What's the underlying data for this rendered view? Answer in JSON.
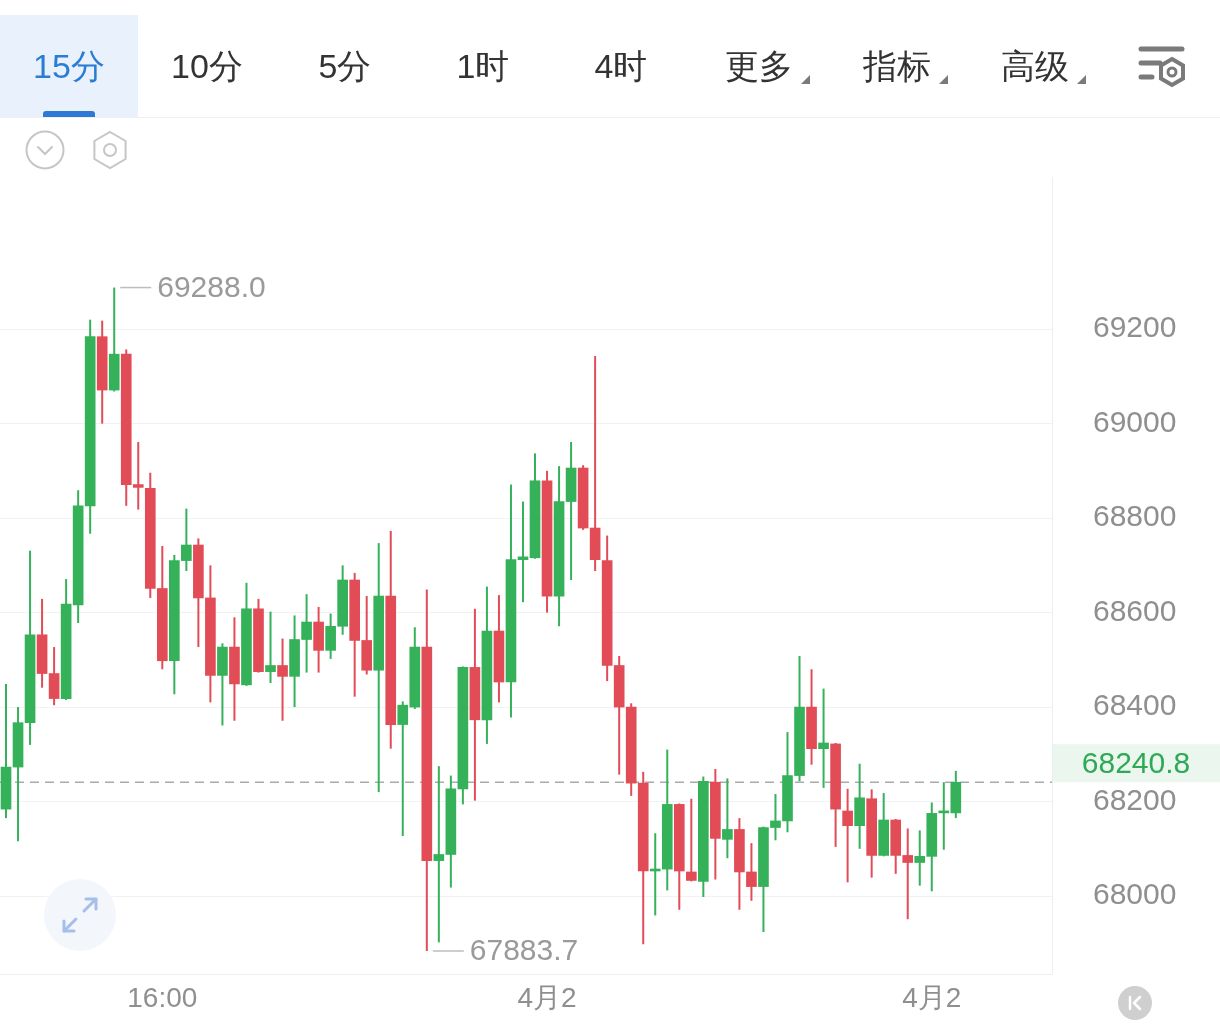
{
  "chart_data": {
    "type": "candlestick",
    "categories": [
      null,
      null,
      null,
      null,
      null,
      null,
      null,
      null,
      null,
      null,
      null,
      null,
      null,
      "16:00",
      null,
      null,
      null,
      null,
      null,
      null,
      null,
      null,
      null,
      null,
      null,
      null,
      null,
      null,
      null,
      null,
      null,
      null,
      null,
      null,
      null,
      null,
      null,
      null,
      null,
      null,
      null,
      null,
      null,
      null,
      null,
      "4月2",
      null,
      null,
      null,
      null,
      null,
      null,
      null,
      null,
      null,
      null,
      null,
      null,
      null,
      null,
      null,
      null,
      null,
      null,
      null,
      null,
      null,
      null,
      null,
      null,
      null,
      null,
      null,
      null,
      null,
      null,
      null,
      "4月2",
      null,
      null
    ],
    "ohlc": [
      [
        68184,
        68449,
        68165,
        68273
      ],
      [
        68273,
        68400,
        68116,
        68367
      ],
      [
        68367,
        68731,
        68320,
        68553
      ],
      [
        68553,
        68629,
        68441,
        68471
      ],
      [
        68471,
        68527,
        68404,
        68418
      ],
      [
        68418,
        68671,
        68415,
        68618
      ],
      [
        68616,
        68859,
        68578,
        68826
      ],
      [
        68826,
        69220,
        68767,
        69184
      ],
      [
        69184,
        69218,
        69000,
        69071
      ],
      [
        69071,
        69288.0,
        69068,
        69147
      ],
      [
        69147,
        69157,
        68826,
        68871
      ],
      [
        68871,
        68961,
        68818,
        68865
      ],
      [
        68863,
        68896,
        68631,
        68651
      ],
      [
        68651,
        68741,
        68480,
        68498
      ],
      [
        68498,
        68722,
        68427,
        68710
      ],
      [
        68710,
        68820,
        68688,
        68743
      ],
      [
        68743,
        68757,
        68527,
        68631
      ],
      [
        68631,
        68700,
        68410,
        68467
      ],
      [
        68467,
        68535,
        68361,
        68527
      ],
      [
        68527,
        68590,
        68371,
        68449
      ],
      [
        68447,
        68663,
        68445,
        68608
      ],
      [
        68608,
        68629,
        68473,
        68475
      ],
      [
        68475,
        68602,
        68451,
        68488
      ],
      [
        68488,
        68545,
        68371,
        68465
      ],
      [
        68465,
        68594,
        68400,
        68543
      ],
      [
        68543,
        68639,
        68473,
        68580
      ],
      [
        68580,
        68612,
        68473,
        68520
      ],
      [
        68520,
        68598,
        68502,
        68571
      ],
      [
        68571,
        68700,
        68553,
        68669
      ],
      [
        68669,
        68684,
        68422,
        68541
      ],
      [
        68541,
        68635,
        68469,
        68478
      ],
      [
        68478,
        68747,
        68220,
        68635
      ],
      [
        68635,
        68773,
        68312,
        68363
      ],
      [
        68363,
        68412,
        68127,
        68404
      ],
      [
        68400,
        68569,
        68396,
        68527
      ],
      [
        68527,
        68649,
        67883.7,
        68075
      ],
      [
        68075,
        68275,
        67902,
        68088
      ],
      [
        68088,
        68255,
        68018,
        68227
      ],
      [
        68227,
        68486,
        68194,
        68484
      ],
      [
        68484,
        68608,
        68202,
        68373
      ],
      [
        68373,
        68655,
        68322,
        68561
      ],
      [
        68561,
        68637,
        68410,
        68453
      ],
      [
        68453,
        68871,
        68378,
        68712
      ],
      [
        68712,
        68835,
        68622,
        68718
      ],
      [
        68716,
        68937,
        68714,
        68879
      ],
      [
        68879,
        68900,
        68600,
        68635
      ],
      [
        68635,
        68910,
        68571,
        68835
      ],
      [
        68835,
        68961,
        68669,
        68906
      ],
      [
        68906,
        68912,
        68775,
        68779
      ],
      [
        68779,
        69143,
        68688,
        68712
      ],
      [
        68710,
        68763,
        68455,
        68488
      ],
      [
        68488,
        68508,
        68257,
        68400
      ],
      [
        68400,
        68408,
        68212,
        68239
      ],
      [
        68239,
        68263,
        67898,
        68053
      ],
      [
        68053,
        68133,
        67959,
        68057
      ],
      [
        68057,
        68310,
        68012,
        68194
      ],
      [
        68194,
        68196,
        67971,
        68053
      ],
      [
        68051,
        68206,
        68031,
        68033
      ],
      [
        68031,
        68253,
        67998,
        68243
      ],
      [
        68241,
        68269,
        68035,
        68122
      ],
      [
        68120,
        68249,
        68080,
        68141
      ],
      [
        68141,
        68165,
        67971,
        68051
      ],
      [
        68051,
        68112,
        67990,
        68020
      ],
      [
        68020,
        68147,
        67924,
        68145
      ],
      [
        68145,
        68216,
        68118,
        68159
      ],
      [
        68159,
        68347,
        68135,
        68255
      ],
      [
        68255,
        68508,
        68243,
        68400
      ],
      [
        68400,
        68480,
        68278,
        68312
      ],
      [
        68312,
        68439,
        68229,
        68324
      ],
      [
        68322,
        68324,
        68104,
        68184
      ],
      [
        68180,
        68227,
        68029,
        68149
      ],
      [
        68149,
        68280,
        68100,
        68208
      ],
      [
        68206,
        68226,
        68039,
        68086
      ],
      [
        68086,
        68218,
        68084,
        68161
      ],
      [
        68161,
        68163,
        68047,
        68086
      ],
      [
        68086,
        68143,
        67951,
        68071
      ],
      [
        68071,
        68139,
        68022,
        68084
      ],
      [
        68084,
        68198,
        68010,
        68175
      ],
      [
        68176,
        68241,
        68098,
        68178
      ],
      [
        68176,
        68265,
        68165,
        68240.8
      ]
    ],
    "colors": [
      "#35b15a",
      "#35b15a",
      "#35b15a",
      "#e14c57",
      "#e14c57",
      "#35b15a",
      "#35b15a",
      "#35b15a",
      "#e14c57",
      "#35b15a",
      "#e14c57",
      "#e14c57",
      "#e14c57",
      "#e14c57",
      "#35b15a",
      "#35b15a",
      "#e14c57",
      "#e14c57",
      "#35b15a",
      "#e14c57",
      "#35b15a",
      "#e14c57",
      "#35b15a",
      "#e14c57",
      "#35b15a",
      "#35b15a",
      "#e14c57",
      "#35b15a",
      "#35b15a",
      "#e14c57",
      "#e14c57",
      "#35b15a",
      "#e14c57",
      "#35b15a",
      "#35b15a",
      "#e14c57",
      "#35b15a",
      "#35b15a",
      "#35b15a",
      "#e14c57",
      "#35b15a",
      "#e14c57",
      "#35b15a",
      "#35b15a",
      "#35b15a",
      "#e14c57",
      "#35b15a",
      "#35b15a",
      "#e14c57",
      "#e14c57",
      "#e14c57",
      "#e14c57",
      "#e14c57",
      "#e14c57",
      "#35b15a",
      "#35b15a",
      "#e14c57",
      "#e14c57",
      "#35b15a",
      "#e14c57",
      "#35b15a",
      "#e14c57",
      "#e14c57",
      "#35b15a",
      "#35b15a",
      "#35b15a",
      "#35b15a",
      "#e14c57",
      "#35b15a",
      "#e14c57",
      "#e14c57",
      "#35b15a",
      "#e14c57",
      "#35b15a",
      "#e14c57",
      "#e14c57",
      "#35b15a",
      "#35b15a",
      "#35b15a",
      "#35b15a"
    ],
    "ylim": [
      67835,
      69522
    ],
    "yticks": [
      68000,
      68200,
      68400,
      68600,
      68800,
      69000,
      69200
    ],
    "grid": "y",
    "ref_lines": [
      {
        "axis": "y",
        "value": 68240.8,
        "label": "68240.8",
        "color": "#aaaaaa",
        "line_style": "dashed"
      }
    ],
    "annotations": [
      "15分",
      "10分",
      "5分",
      "1时",
      "4时",
      "更多",
      "指标",
      "高级",
      "69288.0",
      "67883.7"
    ]
  }
}
